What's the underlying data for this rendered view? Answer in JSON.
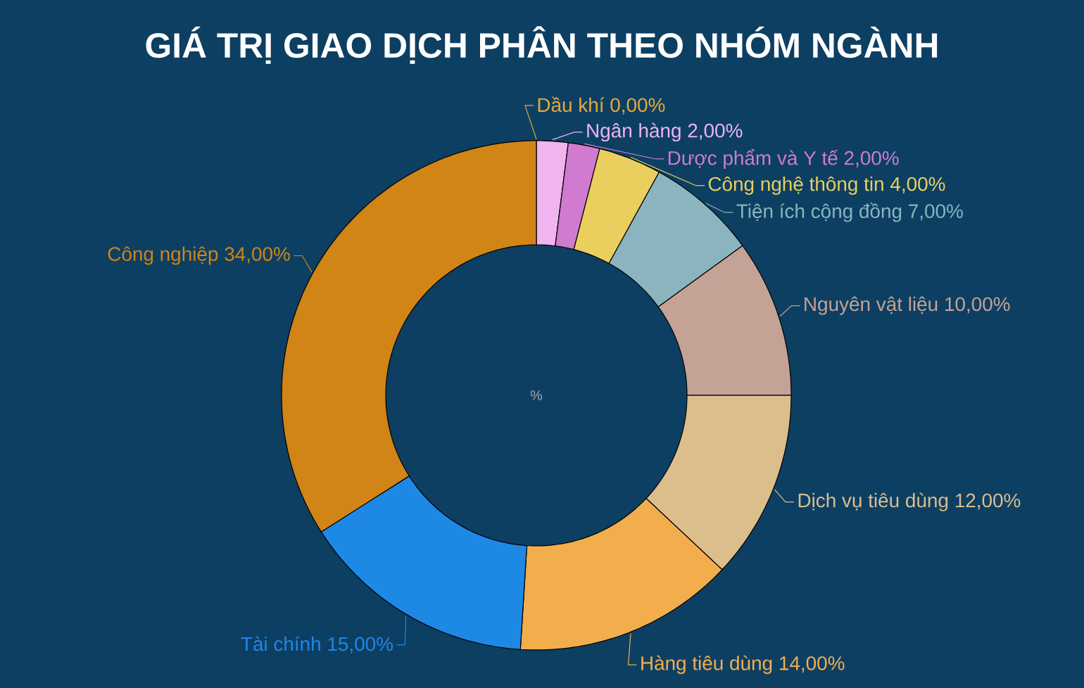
{
  "chart_data": {
    "type": "donut",
    "title": "GIÁ TRỊ GIAO DỊCH PHÂN THEO NHÓM NGÀNH",
    "categories": [
      "Dầu khí",
      "Ngân hàng",
      "Dược phẩm và Y tế",
      "Công nghệ thông tin",
      "Tiện ích cộng đồng",
      "Nguyên vật liệu",
      "Dịch vụ tiêu dùng",
      "Hàng tiêu dùng",
      "Tài chính",
      "Công nghiệp"
    ],
    "values": [
      0,
      2,
      2,
      4,
      7,
      10,
      12,
      14,
      15,
      34
    ],
    "value_labels": [
      "0,00%",
      "2,00%",
      "2,00%",
      "4,00%",
      "7,00%",
      "10,00%",
      "12,00%",
      "14,00%",
      "15,00%",
      "34,00%"
    ],
    "colors": [
      "#e8a838",
      "#f0b4ee",
      "#d07ad0",
      "#ebcf5e",
      "#8ab5bf",
      "#c4a296",
      "#dcbd8c",
      "#f2ae4c",
      "#1e88e5",
      "#d08516"
    ],
    "annotations": [
      "%"
    ]
  }
}
